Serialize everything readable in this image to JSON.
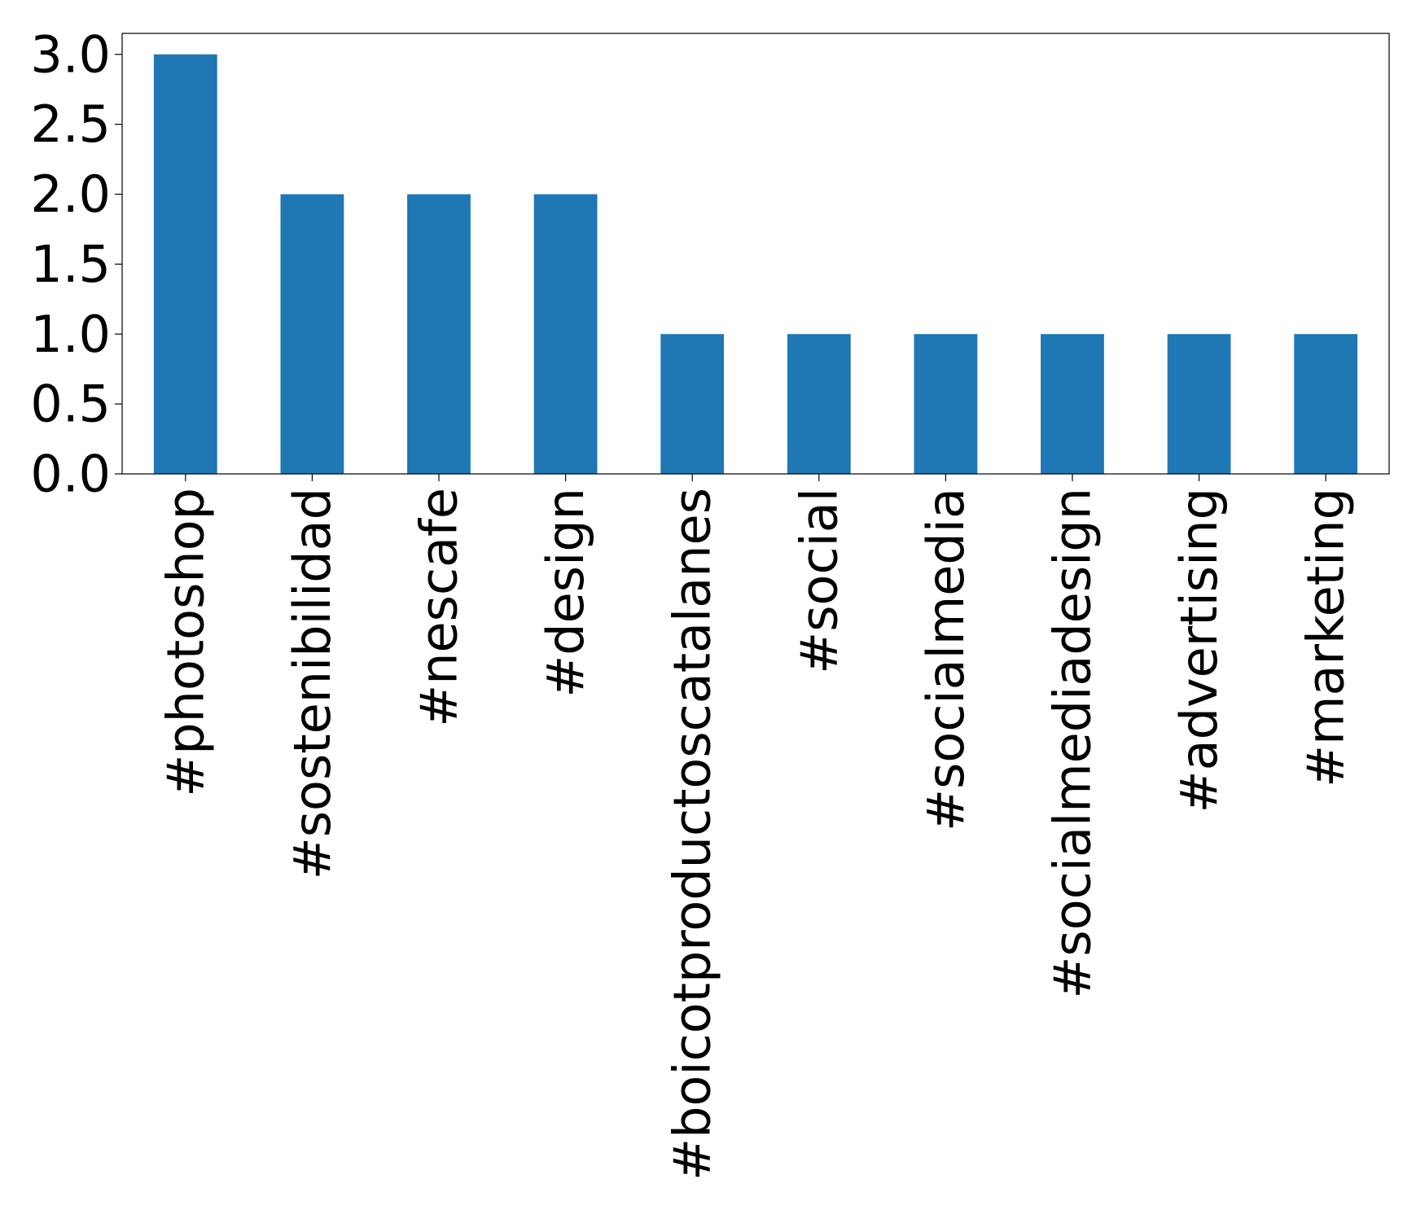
{
  "chart_data": {
    "type": "bar",
    "categories": [
      "#photoshop",
      "#sostenibilidad",
      "#nescafe",
      "#design",
      "#boicotproductoscatalanes",
      "#social",
      "#socialmedia",
      "#socialmediadesign",
      "#advertising",
      "#marketing"
    ],
    "values": [
      3,
      2,
      2,
      2,
      1,
      1,
      1,
      1,
      1,
      1
    ],
    "y_ticks": [
      "0.0",
      "0.5",
      "1.0",
      "1.5",
      "2.0",
      "2.5",
      "3.0"
    ],
    "ylim": [
      0,
      3.15
    ],
    "bar_color": "#1f77b4",
    "grid": false,
    "legend": "none",
    "title": "",
    "xlabel": "",
    "ylabel": ""
  }
}
